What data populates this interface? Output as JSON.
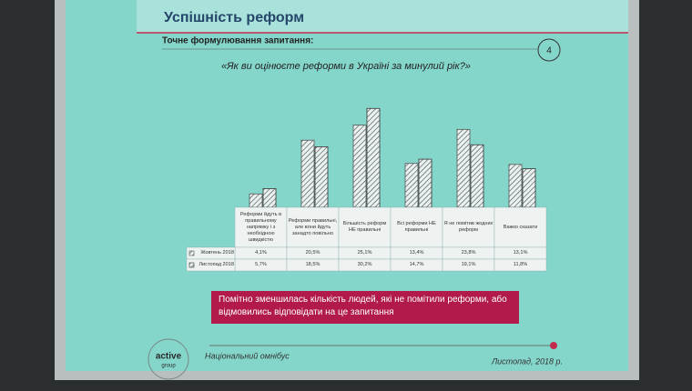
{
  "slide": {
    "title": "Успішність реформ",
    "question_label": "Точне формулювання запитання:",
    "question": "«Як ви оцінюєте реформи в Україні за минулий рік?»",
    "page_number": "4",
    "highlight": "Помітно зменшилась кількість людей, які не помітили реформи, або відмовились відповідати на це запитання",
    "footer_left": "Національний омнібус",
    "footer_right": "Листопад, 2018 р.",
    "logo_top": "active",
    "logo_bottom": "group"
  },
  "chart_data": {
    "type": "bar",
    "categories": [
      "Реформи йдуть в правильному напрямку і з необхідною швидкістю",
      "Реформи правильні, але вони йдуть занадто повільно",
      "Більшість реформ НЕ правильні",
      "Всі реформи НЕ правильні",
      "Я не помітив жодних реформ",
      "Важко сказати"
    ],
    "series": [
      {
        "name": "Жовтень 2018",
        "color": "#555555",
        "values": [
          4.1,
          20.5,
          25.1,
          13.4,
          23.8,
          13.1
        ],
        "value_labels": [
          "4,1%",
          "20,5%",
          "25,1%",
          "13,4%",
          "23,8%",
          "13,1%"
        ]
      },
      {
        "name": "Листопад 2018",
        "color": "#333333",
        "values": [
          5.7,
          18.5,
          30.2,
          14.7,
          19.1,
          11.8
        ],
        "value_labels": [
          "5,7%",
          "18,5%",
          "30,2%",
          "14,7%",
          "19,1%",
          "11,8%"
        ]
      }
    ]
  }
}
